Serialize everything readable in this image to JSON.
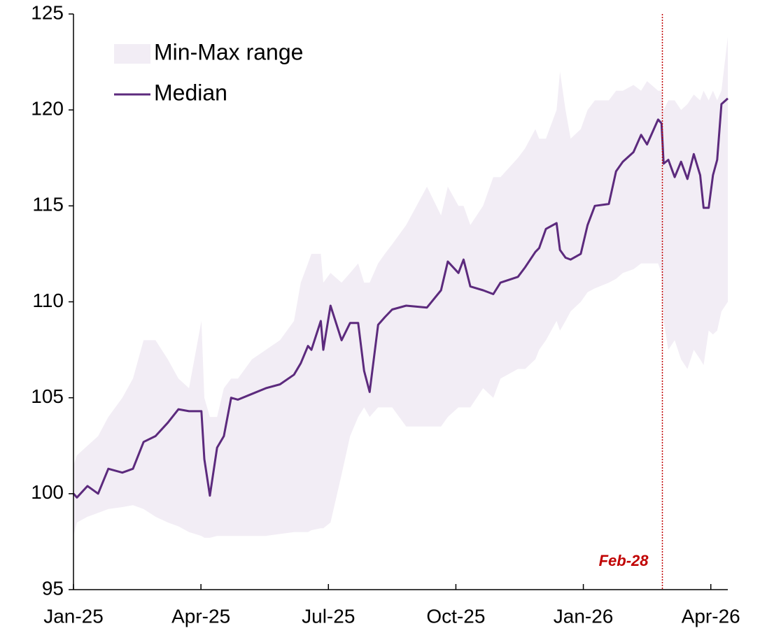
{
  "chart_data": {
    "type": "line",
    "x": [
      0,
      0.08,
      0.33,
      0.58,
      0.82,
      1.15,
      1.4,
      1.65,
      1.93,
      2.22,
      2.47,
      2.72,
      3.01,
      3.08,
      3.21,
      3.38,
      3.54,
      3.71,
      3.87,
      4.2,
      4.53,
      4.86,
      5.19,
      5.35,
      5.52,
      5.6,
      5.82,
      5.88,
      6.05,
      6.31,
      6.51,
      6.7,
      6.84,
      6.97,
      7.17,
      7.33,
      7.5,
      7.83,
      8.32,
      8.65,
      8.81,
      9.06,
      9.18,
      9.34,
      9.64,
      9.88,
      10.05,
      10.46,
      10.63,
      10.87,
      10.96,
      11.12,
      11.37,
      11.45,
      11.58,
      11.7,
      11.94,
      12.1,
      12.27,
      12.6,
      12.77,
      12.93,
      13.18,
      13.36,
      13.5,
      13.76,
      13.84,
      13.89,
      14.0,
      14.15,
      14.3,
      14.45,
      14.6,
      14.75,
      14.83,
      14.95,
      15.05,
      15.15,
      15.25,
      15.4
    ],
    "series": [
      {
        "name": "Min-Max range",
        "type": "band",
        "color": "#f2edf5",
        "lower": [
          97.8,
          98.5,
          98.8,
          99.0,
          99.2,
          99.3,
          99.4,
          99.2,
          98.8,
          98.5,
          98.3,
          98.0,
          97.8,
          97.7,
          97.7,
          97.8,
          97.8,
          97.8,
          97.8,
          97.8,
          97.8,
          97.9,
          98.0,
          98.0,
          98.0,
          98.1,
          98.2,
          98.2,
          98.5,
          101,
          103,
          104,
          104.5,
          104,
          104.5,
          104.5,
          104.5,
          103.5,
          103.5,
          103.5,
          104,
          104.5,
          104.5,
          104.5,
          105.5,
          105,
          106,
          106.5,
          106.5,
          107,
          107.5,
          108,
          109,
          108.5,
          109,
          109.5,
          110,
          110.5,
          110.7,
          111,
          111.2,
          111.5,
          111.7,
          112,
          112,
          112,
          111.5,
          109,
          107.5,
          108,
          107,
          106.5,
          107.5,
          107,
          106.7,
          108.5,
          108.3,
          108.5,
          109.5,
          110
        ],
        "upper": [
          101.5,
          102,
          102.5,
          103,
          104,
          105,
          106,
          108,
          108,
          107,
          106,
          105.5,
          109,
          105,
          104,
          104,
          105.5,
          106,
          106,
          107,
          107.5,
          108,
          109,
          111,
          112,
          112.5,
          112.5,
          111,
          111.5,
          111,
          111.5,
          112,
          111,
          111,
          112,
          112.5,
          113,
          114,
          116,
          114.5,
          116,
          115,
          115,
          114,
          115,
          116.5,
          116.5,
          117.5,
          118,
          119,
          118.5,
          118.5,
          120,
          122,
          120,
          118.5,
          119,
          120,
          120.5,
          120.5,
          121,
          121,
          121.3,
          121,
          121.5,
          121,
          121,
          120,
          120.5,
          120.5,
          120,
          120.3,
          120.8,
          120.5,
          121,
          120.5,
          121,
          120.5,
          121,
          123.8
        ]
      },
      {
        "name": "Median",
        "type": "line",
        "color": "#5c2a7d",
        "values": [
          100.0,
          99.8,
          100.4,
          100.0,
          101.3,
          101.1,
          101.3,
          102.7,
          103.0,
          103.7,
          104.4,
          104.3,
          104.3,
          101.8,
          99.9,
          102.4,
          103.0,
          105.0,
          104.9,
          105.2,
          105.5,
          105.7,
          106.2,
          106.8,
          107.7,
          107.5,
          109.0,
          107.5,
          109.8,
          108.0,
          108.9,
          108.9,
          106.4,
          105.3,
          108.8,
          109.2,
          109.6,
          109.8,
          109.7,
          110.6,
          112.1,
          111.5,
          112.2,
          110.8,
          110.6,
          110.4,
          111.0,
          111.3,
          111.8,
          112.6,
          112.8,
          113.8,
          114.1,
          112.7,
          112.3,
          112.2,
          112.5,
          114.0,
          115.0,
          115.1,
          116.8,
          117.3,
          117.8,
          118.7,
          118.2,
          119.5,
          119.3,
          117.2,
          117.4,
          116.5,
          117.3,
          116.4,
          117.7,
          116.6,
          114.9,
          114.9,
          116.6,
          117.4,
          120.3,
          120.6
        ]
      }
    ],
    "xlim": [
      0,
      15.4
    ],
    "xticks": [
      {
        "value": 0,
        "label": "Jan-25"
      },
      {
        "value": 3,
        "label": "Apr-25"
      },
      {
        "value": 6,
        "label": "Jul-25"
      },
      {
        "value": 9,
        "label": "Oct-25"
      },
      {
        "value": 12,
        "label": "Jan-26"
      },
      {
        "value": 15,
        "label": "Apr-26"
      }
    ],
    "ylim": [
      95,
      125
    ],
    "yticks": [
      95,
      100,
      105,
      110,
      115,
      120,
      125
    ],
    "grid": false,
    "legend": "top-left",
    "annotations": [
      {
        "text": "Feb-28",
        "x": 13.86,
        "color": "#c00000"
      }
    ]
  }
}
